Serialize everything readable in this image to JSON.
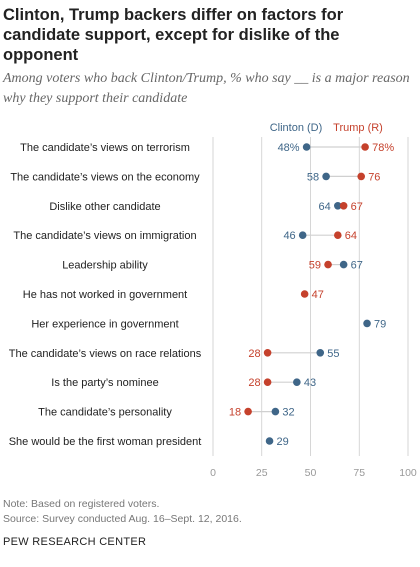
{
  "title": "Clinton, Trump backers differ on factors for candidate support, except for dislike of the opponent",
  "subtitle": "Among voters who back Clinton/Trump, % who say __ is a major reason why they support their candidate",
  "note": "Note: Based on registered voters.",
  "source": "Source: Survey conducted Aug. 16–Sept. 12, 2016.",
  "brand": "PEW RESEARCH CENTER",
  "colors": {
    "clinton": "#3f6688",
    "trump": "#c5412c",
    "axis": "#cccccc"
  },
  "chart_data": {
    "type": "scatter",
    "xlim": [
      0,
      100
    ],
    "xticks": [
      0,
      25,
      50,
      75,
      100
    ],
    "categories": [
      "The candidate’s views on terrorism",
      "The candidate’s views on the economy",
      "Dislike other candidate",
      "The candidate’s views on immigration",
      "Leadership ability",
      "He has not worked in government",
      "Her experience in government",
      "The candidate’s views on race relations",
      "Is the party’s nominee",
      "The candidate’s personality",
      "She would be the first woman president"
    ],
    "series": [
      {
        "name": "Clinton (D)",
        "values": [
          48,
          58,
          64,
          46,
          67,
          null,
          79,
          55,
          43,
          32,
          29
        ],
        "labels": [
          "48%",
          "58",
          "64",
          "46",
          "67",
          "",
          "79",
          "55",
          "43",
          "32",
          "29"
        ]
      },
      {
        "name": "Trump (R)",
        "values": [
          78,
          76,
          67,
          64,
          59,
          47,
          null,
          28,
          28,
          18,
          null
        ],
        "labels": [
          "78%",
          "76",
          "67",
          "64",
          "59",
          "47",
          "",
          "28",
          "28",
          "18",
          ""
        ]
      }
    ]
  }
}
